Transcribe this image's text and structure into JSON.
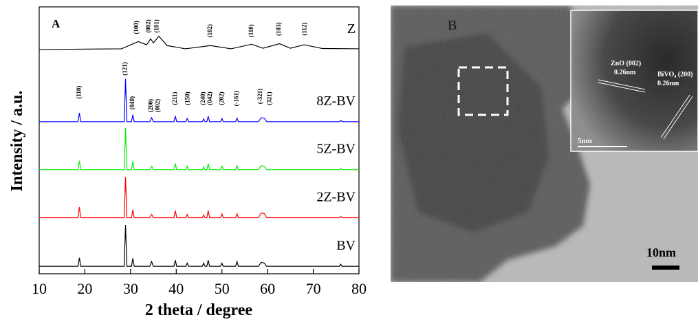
{
  "chart_data": {
    "type": "line",
    "panel_label": "A",
    "xlabel": "2 theta / degree",
    "ylabel": "Intensity / a.u.",
    "xlim": [
      10,
      80
    ],
    "xticks": [
      10,
      20,
      30,
      40,
      50,
      60,
      70,
      80
    ],
    "ylim": [
      0,
      100
    ],
    "x": [
      10,
      18.5,
      18.8,
      19.1,
      28.6,
      28.9,
      29.2,
      30.2,
      30.5,
      30.8,
      34.2,
      34.6,
      35.0,
      39.5,
      39.8,
      40.1,
      42.1,
      42.4,
      42.7,
      45.7,
      46.0,
      46.3,
      46.7,
      47.0,
      47.3,
      49.7,
      50.0,
      50.3,
      53.0,
      53.3,
      53.6,
      58.0,
      58.6,
      59.3,
      59.8,
      75.7,
      76.0,
      76.3,
      80
    ],
    "series": [
      {
        "name": "Z",
        "color": "#000000",
        "x": [
          10,
          28,
          31.7,
          33.5,
          34.4,
          35,
          36.2,
          38,
          42,
          47.5,
          52,
          56.5,
          59,
          62.6,
          65,
          68,
          72,
          80
        ],
        "values": [
          84,
          84.3,
          87,
          85.8,
          88,
          86.5,
          89,
          85.5,
          84.3,
          85.5,
          84.3,
          86,
          84.5,
          86.2,
          84.5,
          85.8,
          84.4,
          84.3
        ]
      },
      {
        "name": "8Z-BV",
        "color": "#0000ff",
        "values": [
          57,
          57,
          60.3,
          57,
          57,
          73,
          57,
          57,
          59.6,
          57,
          57,
          58.5,
          57,
          57,
          59.1,
          57,
          57,
          58.2,
          57,
          57,
          58,
          57,
          57,
          59,
          57,
          57,
          58.2,
          57,
          57,
          58.3,
          57,
          57,
          58.5,
          58.2,
          57,
          57,
          57.5,
          57,
          57
        ]
      },
      {
        "name": "5Z-BV",
        "color": "#00ee00",
        "values": [
          39,
          39,
          42.3,
          39,
          39,
          54.6,
          39,
          39,
          42.2,
          39,
          39,
          40.3,
          39,
          39,
          41.3,
          39,
          39,
          40.3,
          39,
          39,
          40,
          39,
          39,
          41.3,
          39,
          39,
          40.3,
          39,
          39,
          40.5,
          39,
          39,
          40.5,
          40.2,
          39,
          39,
          39.5,
          39,
          39
        ]
      },
      {
        "name": "2Z-BV",
        "color": "#ff0000",
        "values": [
          21,
          21,
          25,
          21,
          21,
          36.3,
          21,
          21,
          24,
          21,
          21,
          22.3,
          21,
          21,
          23.7,
          21,
          21,
          22.2,
          21,
          21,
          22,
          21,
          21,
          23.7,
          21,
          21,
          22.5,
          21,
          21,
          22.5,
          21,
          21,
          22.8,
          22.5,
          21,
          21,
          21.5,
          21,
          21
        ]
      },
      {
        "name": "BV",
        "color": "#000000",
        "values": [
          2.8,
          2.8,
          6,
          2.8,
          2.8,
          18.3,
          2.8,
          2.8,
          5.8,
          2.8,
          2.8,
          4.6,
          2.8,
          2.8,
          5.1,
          2.8,
          2.8,
          4,
          2.8,
          2.8,
          4,
          2.8,
          2.8,
          5.1,
          2.8,
          2.8,
          4,
          2.8,
          2.8,
          4.6,
          2.8,
          2.8,
          4.3,
          4,
          2.8,
          2.8,
          3.6,
          2.8,
          2.8
        ]
      }
    ],
    "annotations": [
      {
        "text": "(100)",
        "x": 31.4,
        "y": 92.3
      },
      {
        "text": "(002)",
        "x": 34,
        "y": 92.8
      },
      {
        "text": "(101)",
        "x": 35.8,
        "y": 92.8
      },
      {
        "text": "(102)",
        "x": 47.5,
        "y": 91
      },
      {
        "text": "(110)",
        "x": 56.5,
        "y": 91
      },
      {
        "text": "(103)",
        "x": 62.5,
        "y": 91.7
      },
      {
        "text": "(112)",
        "x": 68.2,
        "y": 91.7
      },
      {
        "text": "(110)",
        "x": 18.8,
        "y": 68
      },
      {
        "text": "(121)",
        "x": 28.9,
        "y": 76.8
      },
      {
        "text": "(040)",
        "x": 30.5,
        "y": 64
      },
      {
        "text": "(200)",
        "x": 34.5,
        "y": 63
      },
      {
        "text": "(002)",
        "x": 36,
        "y": 63
      },
      {
        "text": "(211)",
        "x": 39.8,
        "y": 65.7
      },
      {
        "text": "(150)",
        "x": 42.6,
        "y": 65.7
      },
      {
        "text": "(240)",
        "x": 46,
        "y": 65.7
      },
      {
        "text": "(042)",
        "x": 47.5,
        "y": 65.7
      },
      {
        "text": "(202)",
        "x": 50,
        "y": 65.7
      },
      {
        "text": "(-161)",
        "x": 53.3,
        "y": 65.7
      },
      {
        "text": "(-321)",
        "x": 58.5,
        "y": 66.5
      },
      {
        "text": "(321)",
        "x": 60.5,
        "y": 65.7
      }
    ]
  },
  "panel_b": {
    "label": "B",
    "zno_label": "ZnO (002)",
    "zno_spacing": "0.26nm",
    "bivo_label": "BiVO₄ (200)",
    "bivo_spacing": "0.26nm",
    "inset_scale": "5nm",
    "main_scale": "10nm"
  }
}
